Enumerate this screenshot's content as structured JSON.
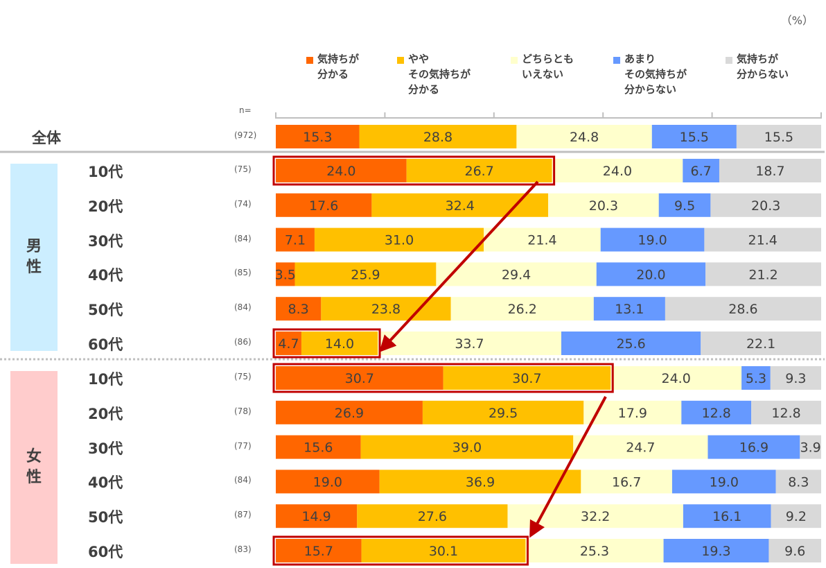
{
  "chart_data": {
    "type": "bar",
    "orientation": "horizontal-stacked-100",
    "unit_label": "（%）",
    "n_prefix": "n=",
    "xlim": [
      0,
      100
    ],
    "series": [
      {
        "name": "気持ちが\n分かる",
        "color": "#FF6600"
      },
      {
        "name": "やや\nその気持ちが\n分かる",
        "color": "#FFC000"
      },
      {
        "name": "どちらとも\nいえない",
        "color": "#FFFFCC"
      },
      {
        "name": "あまり\nその気持ちが\n分からない",
        "color": "#6699FF"
      },
      {
        "name": "気持ちが\n分からない",
        "color": "#D9D9D9"
      }
    ],
    "total": {
      "label": "全体",
      "n": "(972)",
      "values": [
        15.3,
        28.8,
        24.8,
        15.5,
        15.5
      ]
    },
    "groups": [
      {
        "label": "男\n性",
        "color": "#CCEEFF",
        "rows": [
          {
            "label": "10代",
            "n": "(75)",
            "values": [
              24.0,
              26.7,
              24.0,
              6.7,
              18.7
            ],
            "highlight": true
          },
          {
            "label": "20代",
            "n": "(74)",
            "values": [
              17.6,
              32.4,
              20.3,
              9.5,
              20.3
            ]
          },
          {
            "label": "30代",
            "n": "(84)",
            "values": [
              7.1,
              31.0,
              21.4,
              19.0,
              21.4
            ]
          },
          {
            "label": "40代",
            "n": "(85)",
            "values": [
              3.5,
              25.9,
              29.4,
              20.0,
              21.2
            ]
          },
          {
            "label": "50代",
            "n": "(84)",
            "values": [
              8.3,
              23.8,
              26.2,
              13.1,
              28.6
            ]
          },
          {
            "label": "60代",
            "n": "(86)",
            "values": [
              4.7,
              14.0,
              33.7,
              25.6,
              22.1
            ],
            "highlight": true
          }
        ]
      },
      {
        "label": "女\n性",
        "color": "#FFCCCC",
        "rows": [
          {
            "label": "10代",
            "n": "(75)",
            "values": [
              30.7,
              30.7,
              24.0,
              5.3,
              9.3
            ],
            "highlight": true
          },
          {
            "label": "20代",
            "n": "(78)",
            "values": [
              26.9,
              29.5,
              17.9,
              12.8,
              12.8
            ]
          },
          {
            "label": "30代",
            "n": "(77)",
            "values": [
              15.6,
              39.0,
              24.7,
              16.9,
              3.9
            ]
          },
          {
            "label": "40代",
            "n": "(84)",
            "values": [
              19.0,
              36.9,
              16.7,
              19.0,
              8.3
            ]
          },
          {
            "label": "50代",
            "n": "(87)",
            "values": [
              14.9,
              27.6,
              32.2,
              16.1,
              9.2
            ]
          },
          {
            "label": "60代",
            "n": "(83)",
            "values": [
              15.7,
              30.1,
              25.3,
              19.3,
              9.6
            ],
            "highlight": true
          }
        ]
      }
    ],
    "highlight_color": "#C00000"
  }
}
